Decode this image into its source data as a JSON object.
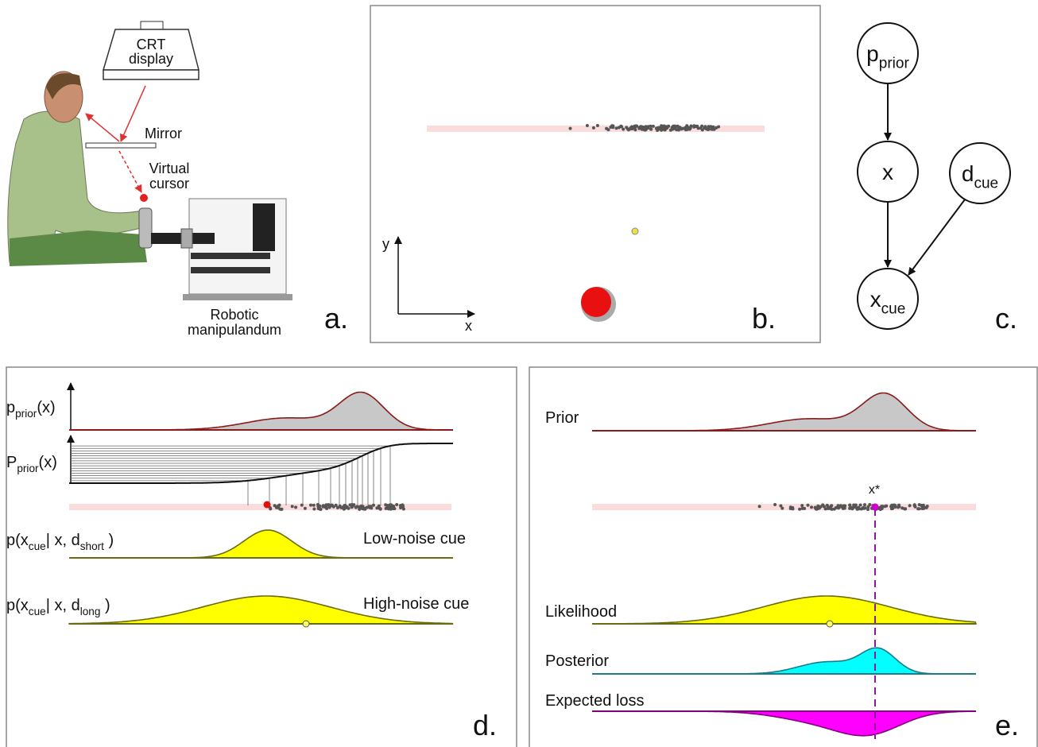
{
  "panel_a": {
    "display": [
      "CRT",
      "display"
    ],
    "mirror": "Mirror",
    "cursor": [
      "Virtual",
      "cursor"
    ],
    "device": [
      "Robotic",
      "manipulandum"
    ],
    "label": "a."
  },
  "panel_b": {
    "y_axis": "y",
    "x_axis": "x",
    "label": "b."
  },
  "panel_c": {
    "nodes": [
      [
        {
          "t": "p"
        },
        {
          "s": "prior"
        }
      ],
      [
        {
          "t": "x"
        }
      ],
      [
        {
          "t": "d"
        },
        {
          "s": "cue"
        }
      ],
      [
        {
          "t": "x"
        },
        {
          "s": "cue"
        }
      ]
    ],
    "label": "c."
  },
  "panel_d": {
    "density": [
      {
        "t": "p"
      },
      {
        "s": "prior"
      },
      {
        "t": "(x)"
      }
    ],
    "cumulative": [
      {
        "t": "P"
      },
      {
        "s": "prior"
      },
      {
        "t": "(x)"
      }
    ],
    "short_cue": [
      {
        "t": "p(x"
      },
      {
        "s": "cue"
      },
      {
        "t": "| x, d"
      },
      {
        "s": "short"
      },
      {
        "t": " )"
      }
    ],
    "long_cue": [
      {
        "t": "p(x"
      },
      {
        "s": "cue"
      },
      {
        "t": "| x, d"
      },
      {
        "s": "long"
      },
      {
        "t": " )"
      }
    ],
    "low_noise": "Low-noise cue",
    "high_noise": "High-noise cue",
    "label": "d."
  },
  "panel_e": {
    "prior": "Prior",
    "optimum": "x*",
    "likelihood": "Likelihood",
    "posterior": "Posterior",
    "loss": "Expected loss",
    "label": "e."
  }
}
